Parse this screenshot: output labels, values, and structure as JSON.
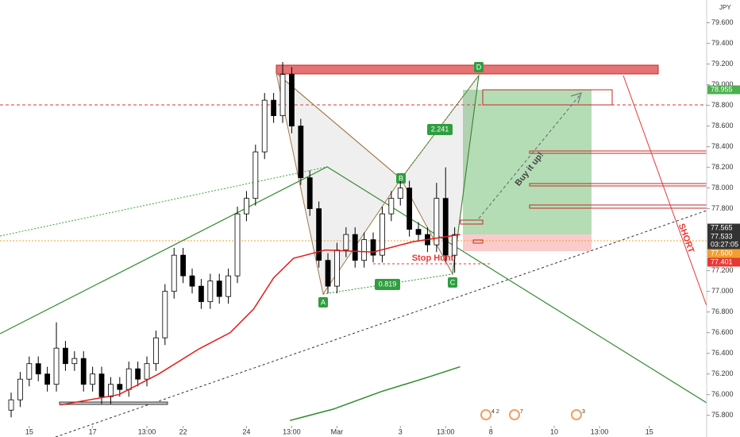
{
  "chart_data": {
    "type": "candlestick",
    "x": [
      0,
      1,
      2,
      3,
      4,
      5,
      6,
      7,
      8,
      9,
      10,
      11,
      12,
      13,
      14,
      15,
      16,
      17,
      18,
      19,
      20,
      21,
      22,
      23,
      24,
      25,
      26,
      27,
      28,
      29,
      30,
      31,
      32,
      33,
      34,
      35,
      36,
      37,
      38,
      39,
      40,
      41,
      42,
      43,
      44,
      45,
      46,
      47,
      48,
      49
    ],
    "open": [
      75.85,
      75.95,
      76.15,
      76.3,
      76.2,
      76.1,
      76.45,
      76.3,
      76.35,
      76.1,
      76.2,
      75.98,
      76.1,
      76.05,
      76.25,
      76.15,
      76.3,
      76.55,
      77.0,
      77.35,
      77.15,
      77.05,
      76.9,
      77.1,
      76.95,
      77.15,
      77.75,
      77.9,
      78.35,
      78.85,
      78.7,
      79.1,
      78.6,
      78.1,
      77.8,
      77.3,
      77.05,
      77.4,
      77.55,
      77.3,
      77.5,
      77.35,
      77.75,
      77.9,
      78.0,
      77.6,
      77.55,
      77.45,
      77.9,
      77.35
    ],
    "high": [
      76.02,
      76.22,
      76.37,
      76.37,
      76.27,
      76.7,
      76.52,
      76.42,
      76.42,
      76.27,
      76.27,
      76.17,
      76.17,
      76.32,
      76.32,
      76.37,
      76.62,
      77.07,
      77.42,
      77.42,
      77.22,
      77.12,
      77.17,
      77.17,
      77.22,
      77.82,
      77.97,
      78.42,
      78.92,
      78.92,
      79.22,
      79.17,
      78.67,
      78.17,
      77.87,
      77.37,
      77.47,
      77.62,
      77.62,
      77.57,
      77.57,
      77.82,
      77.97,
      78.07,
      78.07,
      77.67,
      77.62,
      78.05,
      78.2,
      77.62
    ],
    "low": [
      75.78,
      75.88,
      76.08,
      76.13,
      76.03,
      76.03,
      76.23,
      76.23,
      76.03,
      76.03,
      75.91,
      75.91,
      75.98,
      75.98,
      76.08,
      76.08,
      76.23,
      76.48,
      76.93,
      77.08,
      76.98,
      76.83,
      76.83,
      76.88,
      76.88,
      77.08,
      77.68,
      77.83,
      78.28,
      78.63,
      78.63,
      78.53,
      78.03,
      77.73,
      77.23,
      76.98,
      76.98,
      77.33,
      77.23,
      77.23,
      77.28,
      77.28,
      77.68,
      77.83,
      77.53,
      77.48,
      77.38,
      77.38,
      77.28,
      77.18
    ],
    "close": [
      75.95,
      76.15,
      76.3,
      76.2,
      76.1,
      76.45,
      76.3,
      76.35,
      76.1,
      76.2,
      75.98,
      76.1,
      76.05,
      76.25,
      76.15,
      76.3,
      76.55,
      77.0,
      77.35,
      77.15,
      77.05,
      76.9,
      77.1,
      76.95,
      77.15,
      77.75,
      77.9,
      78.35,
      78.85,
      78.7,
      79.1,
      78.6,
      78.1,
      77.8,
      77.3,
      77.05,
      77.4,
      77.55,
      77.3,
      77.5,
      77.35,
      77.75,
      77.9,
      78.0,
      77.6,
      77.55,
      77.45,
      77.9,
      77.35,
      77.55
    ],
    "up_color": "#ffffff",
    "down_color": "#000000",
    "lines": [
      {
        "color": "#e41b17",
        "x": [
          5.4,
          11.9,
          16.3,
          20.7,
          24.2,
          26.8,
          29,
          31.2,
          34.7,
          40,
          44.4,
          49.6
        ],
        "values": [
          75.9,
          76.0,
          76.2,
          76.44,
          76.6,
          76.83,
          77.13,
          77.32,
          77.4,
          77.38,
          77.48,
          77.55
        ]
      },
      {
        "color": "#2e8b2e",
        "x": [
          30.8,
          35.6,
          40.9,
          46.1,
          49.6
        ],
        "values": [
          75.75,
          75.86,
          76.03,
          76.17,
          76.27
        ]
      }
    ],
    "xlim": [
      -1.23,
      76.84
    ],
    "ylim": [
      75.59,
      79.82
    ],
    "xticks": [
      {
        "value": 2,
        "label": "15"
      },
      {
        "value": 9,
        "label": "17"
      },
      {
        "value": 15,
        "label": "13:00"
      },
      {
        "value": 19,
        "label": "22"
      },
      {
        "value": 26,
        "label": "24"
      },
      {
        "value": 31,
        "label": "13:00"
      },
      {
        "value": 36,
        "label": "Mar"
      },
      {
        "value": 43,
        "label": "3"
      },
      {
        "value": 48,
        "label": "13:00"
      },
      {
        "value": 53,
        "label": "8"
      },
      {
        "value": 60,
        "label": "10"
      },
      {
        "value": 65,
        "label": "13:00"
      },
      {
        "value": 70.5,
        "label": "15"
      }
    ],
    "yticks": [
      {
        "value": 75.8,
        "label": "75.800"
      },
      {
        "value": 76.0,
        "label": "76.000"
      },
      {
        "value": 76.2,
        "label": "76.200"
      },
      {
        "value": 76.4,
        "label": "76.400"
      },
      {
        "value": 76.6,
        "label": "76.600"
      },
      {
        "value": 76.8,
        "label": "76.800"
      },
      {
        "value": 77.0,
        "label": "77.000"
      },
      {
        "value": 77.2,
        "label": "77.200"
      },
      {
        "value": 77.8,
        "label": "77.800"
      },
      {
        "value": 78.0,
        "label": "78.000"
      },
      {
        "value": 78.2,
        "label": "78.200"
      },
      {
        "value": 78.4,
        "label": "78.400"
      },
      {
        "value": 78.6,
        "label": "78.600"
      },
      {
        "value": 78.8,
        "label": "78.800"
      },
      {
        "value": 79.0,
        "label": "79.000"
      },
      {
        "value": 79.2,
        "label": "79.200"
      },
      {
        "value": 79.4,
        "label": "79.400"
      },
      {
        "value": 79.6,
        "label": "79.600"
      }
    ],
    "price_tags": [
      {
        "label": "78.955",
        "color": "#4caf50"
      },
      {
        "label": "77.565",
        "color": "#333333"
      },
      {
        "label": "77.533",
        "color": "#333333"
      },
      {
        "label": "03:27:05",
        "color": "#333333"
      },
      {
        "label": "77.500",
        "color": "#f0a030"
      },
      {
        "label": "77.401",
        "color": "#e53935"
      }
    ],
    "currency": "JPY",
    "grid": false,
    "annotations": {
      "stop_hunt": "Stop Hunt",
      "buy": "Buy it up!",
      "short": "SHORT",
      "ratio_bd": "2.241",
      "ratio_ac": "0.819",
      "a": "A",
      "b": "B",
      "c": "C",
      "d": "D",
      "events": [
        "4 2",
        "7",
        "3"
      ]
    }
  }
}
